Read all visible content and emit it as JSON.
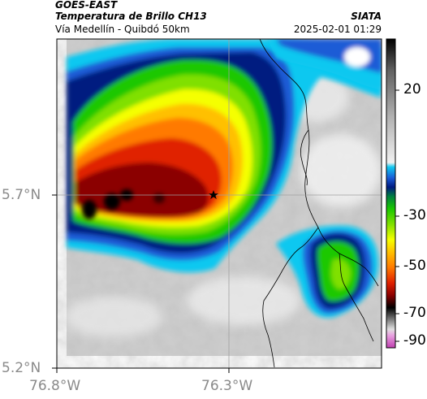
{
  "header": {
    "satellite": "GOES-EAST",
    "product": "Temperatura de Brillo CH13",
    "route": "Vía Medellín - Quibdó 50km",
    "agency": "SIATA",
    "datetime": "2025-02-01 01:29"
  },
  "axes": {
    "lat_labels": [
      "5.7°N",
      "5.2°N"
    ],
    "lon_labels": [
      "76.8°W",
      "76.3°W"
    ]
  },
  "colorbar": {
    "labels": [
      "20",
      "-30",
      "-50",
      "-70",
      "-90"
    ],
    "colors": {
      "cold_magenta": "#c040b0",
      "black": "#000000",
      "dark_red": "#8b0000",
      "red": "#e02000",
      "orange": "#ff7a00",
      "yellow": "#f5ff00",
      "green": "#1ac800",
      "dark_blue": "#001a80",
      "blue": "#1a5bd6",
      "cyan": "#10c8f0",
      "light_gray": "#d8d8d8",
      "white": "#ffffff"
    }
  },
  "marker": {
    "icon": "star-icon"
  }
}
